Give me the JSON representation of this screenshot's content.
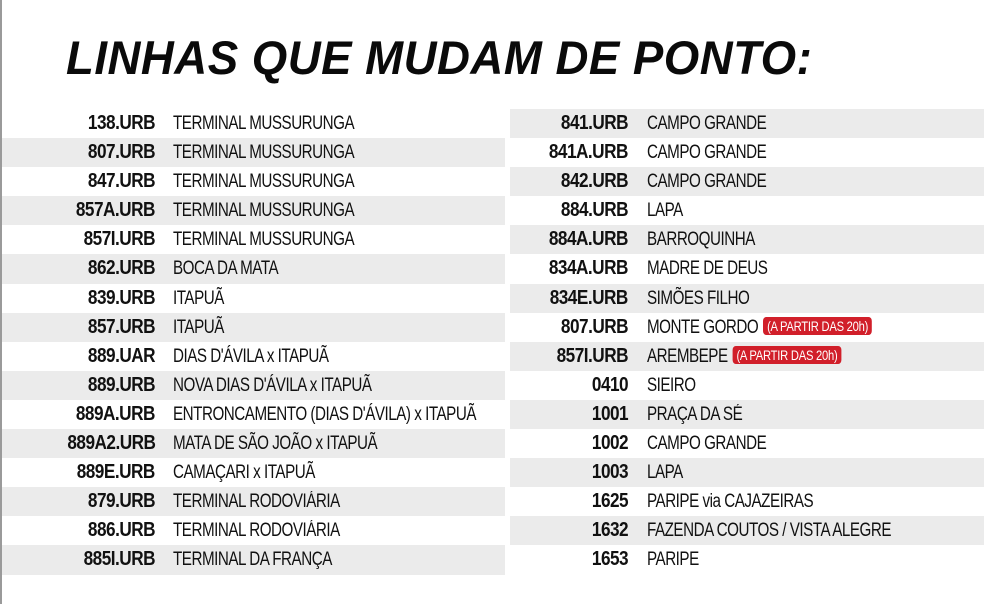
{
  "title": "LINHAS QUE MUDAM DE PONTO:",
  "colors": {
    "stripe": "#ebebeb",
    "badge": "#d11f2a"
  },
  "left_column": [
    {
      "code": "138.URB",
      "name": "TERMINAL MUSSURUNGA"
    },
    {
      "code": "807.URB",
      "name": "TERMINAL MUSSURUNGA"
    },
    {
      "code": "847.URB",
      "name": "TERMINAL MUSSURUNGA"
    },
    {
      "code": "857A.URB",
      "name": "TERMINAL MUSSURUNGA"
    },
    {
      "code": "857I.URB",
      "name": "TERMINAL MUSSURUNGA"
    },
    {
      "code": "862.URB",
      "name": "BOCA DA MATA"
    },
    {
      "code": "839.URB",
      "name": "ITAPUÃ"
    },
    {
      "code": "857.URB",
      "name": "ITAPUÃ"
    },
    {
      "code": "889.UAR",
      "name": "DIAS D'ÁVILA x ITAPUÃ"
    },
    {
      "code": "889.URB",
      "name": "NOVA DIAS D'ÁVILA x ITAPUÃ"
    },
    {
      "code": "889A.URB",
      "name": "ENTRONCAMENTO (DIAS D'ÁVILA) x ITAPUÃ"
    },
    {
      "code": "889A2.URB",
      "name": "MATA DE SÃO JOÃO x ITAPUÃ"
    },
    {
      "code": "889E.URB",
      "name": "CAMAÇARI x ITAPUÃ"
    },
    {
      "code": "879.URB",
      "name": "TERMINAL RODOVIÁRIA"
    },
    {
      "code": "886.URB",
      "name": "TERMINAL RODOVIÁRIA"
    },
    {
      "code": "885I.URB",
      "name": "TERMINAL DA FRANÇA"
    }
  ],
  "right_column": [
    {
      "code": "841.URB",
      "name": "CAMPO GRANDE"
    },
    {
      "code": "841A.URB",
      "name": "CAMPO GRANDE"
    },
    {
      "code": "842.URB",
      "name": "CAMPO GRANDE"
    },
    {
      "code": "884.URB",
      "name": "LAPA"
    },
    {
      "code": "884A.URB",
      "name": "BARROQUINHA"
    },
    {
      "code": "834A.URB",
      "name": "MADRE DE DEUS"
    },
    {
      "code": "834E.URB",
      "name": "SIMÕES FILHO"
    },
    {
      "code": "807.URB",
      "name": "MONTE GORDO",
      "note": "(A PARTIR DAS 20h)"
    },
    {
      "code": "857I.URB",
      "name": "AREMBEPE",
      "note": "(A PARTIR DAS 20h)"
    },
    {
      "code": "0410",
      "name": "SIEIRO"
    },
    {
      "code": "1001",
      "name": "PRAÇA DA SÉ"
    },
    {
      "code": "1002",
      "name": "CAMPO GRANDE"
    },
    {
      "code": "1003",
      "name": "LAPA"
    },
    {
      "code": "1625",
      "name": "PARIPE via CAJAZEIRAS"
    },
    {
      "code": "1632",
      "name": "FAZENDA COUTOS / VISTA ALEGRE"
    },
    {
      "code": "1653",
      "name": "PARIPE"
    }
  ]
}
